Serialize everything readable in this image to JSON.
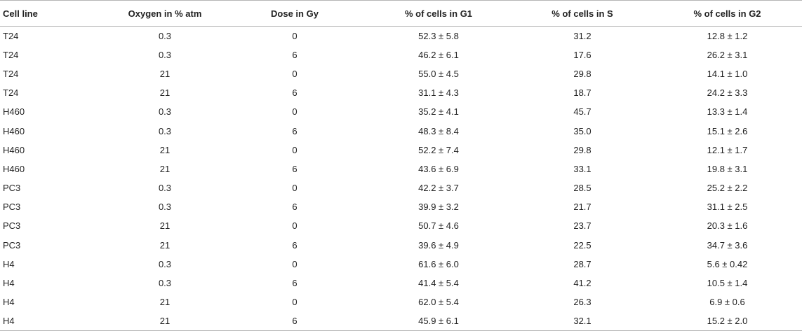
{
  "table": {
    "headers": [
      "Cell line",
      "Oxygen in % atm",
      "Dose in Gy",
      "% of cells in G1",
      "% of cells in S",
      "% of cells in G2"
    ],
    "rows": [
      [
        "T24",
        "0.3",
        "0",
        "52.3 ± 5.8",
        "31.2",
        "12.8 ± 1.2"
      ],
      [
        "T24",
        "0.3",
        "6",
        "46.2 ± 6.1",
        "17.6",
        "26.2 ± 3.1"
      ],
      [
        "T24",
        "21",
        "0",
        "55.0 ± 4.5",
        "29.8",
        "14.1 ± 1.0"
      ],
      [
        "T24",
        "21",
        "6",
        "31.1 ± 4.3",
        "18.7",
        "24.2 ± 3.3"
      ],
      [
        "H460",
        "0.3",
        "0",
        "35.2 ± 4.1",
        "45.7",
        "13.3 ± 1.4"
      ],
      [
        "H460",
        "0.3",
        "6",
        "48.3 ± 8.4",
        "35.0",
        "15.1 ± 2.6"
      ],
      [
        "H460",
        "21",
        "0",
        "52.2 ± 7.4",
        "29.8",
        "12.1 ± 1.7"
      ],
      [
        "H460",
        "21",
        "6",
        "43.6 ± 6.9",
        "33.1",
        "19.8 ± 3.1"
      ],
      [
        "PC3",
        "0.3",
        "0",
        "42.2 ± 3.7",
        "28.5",
        "25.2 ± 2.2"
      ],
      [
        "PC3",
        "0.3",
        "6",
        "39.9 ± 3.2",
        "21.7",
        "31.1 ± 2.5"
      ],
      [
        "PC3",
        "21",
        "0",
        "50.7 ± 4.6",
        "23.7",
        "20.3 ± 1.6"
      ],
      [
        "PC3",
        "21",
        "6",
        "39.6 ± 4.9",
        "22.5",
        "34.7 ± 3.6"
      ],
      [
        "H4",
        "0.3",
        "0",
        "61.6 ± 6.0",
        "28.7",
        "5.6 ± 0.42"
      ],
      [
        "H4",
        "0.3",
        "6",
        "41.4 ± 5.4",
        "41.2",
        "10.5 ± 1.4"
      ],
      [
        "H4",
        "21",
        "0",
        "62.0 ± 5.4",
        "26.3",
        "6.9 ± 0.6"
      ],
      [
        "H4",
        "21",
        "6",
        "45.9 ± 6.1",
        "32.1",
        "15.2 ± 2.0"
      ]
    ]
  }
}
